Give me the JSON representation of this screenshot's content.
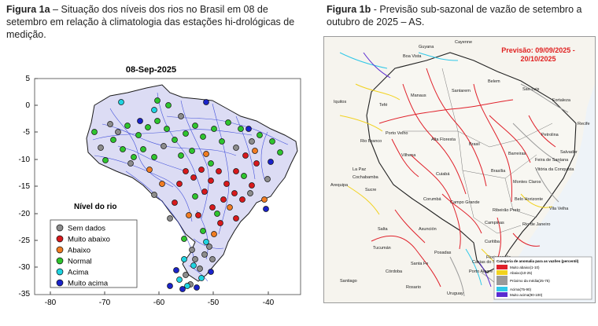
{
  "figure_a": {
    "caption_label": "Figura 1a",
    "caption_text": " – Situação dos níveis dos rios no Brasil em 08 de setembro em relação à climatologia das estações hi-drológicas de medição.",
    "map_title": "08-Sep-2025",
    "x_ticks": [
      "-80",
      "-70",
      "-60",
      "-50",
      "-40"
    ],
    "y_ticks": [
      "5",
      "0",
      "-5",
      "-10",
      "-15",
      "-20",
      "-25",
      "-30",
      "-35"
    ],
    "legend_title": "Nível do rio",
    "legend": [
      {
        "label": "Sem dados",
        "color": "#8c8c8c"
      },
      {
        "label": "Muito abaixo",
        "color": "#d7191c"
      },
      {
        "label": "Abaixo",
        "color": "#f07c22"
      },
      {
        "label": "Normal",
        "color": "#2ec42e"
      },
      {
        "label": "Acima",
        "color": "#1fd3e0"
      },
      {
        "label": "Muito acima",
        "color": "#1a23c9"
      }
    ]
  },
  "figure_b": {
    "caption_label": "Figura 1b",
    "caption_text": " - Previsão sub-sazonal de vazão de setembro a outubro de 2025 – AS.",
    "forecast_label_line1": "Previsão: 09/09/2025 -",
    "forecast_label_line2": "20/10/2025",
    "legend_title": "Categoria de anomalia para as vazões (percentil)",
    "legend": [
      {
        "label": "Muito abaixo(1-10)",
        "color": "#e0202a"
      },
      {
        "label": "Abaixo(10-25)",
        "color": "#f2d21e"
      },
      {
        "label": "Próximo da média(25-75)",
        "color": "#9a9a9a"
      },
      {
        "label": "Acima(75-90)",
        "color": "#30c8e8"
      },
      {
        "label": "Muito acima(90-100)",
        "color": "#5a2bd0"
      }
    ],
    "place_labels": [
      "Cayenne",
      "Guyana",
      "Boa Vista",
      "Belem",
      "Fortaleza",
      "Manaus",
      "Sao Luis",
      "Tefé",
      "Santarem",
      "Recife",
      "Iquitos",
      "Petrolina",
      "Rio Branco",
      "Porto Velho",
      "Alta Floresta",
      "Brasil",
      "Barreiras",
      "Vilhena",
      "Salvador",
      "Feira de Santana",
      "Cuiabá",
      "Brasília",
      "Vitória da Conquista",
      "Montes Claros",
      "Cochabamba",
      "Sucre",
      "Corumbá",
      "Campo Grande",
      "Belo Horizonte",
      "Vila Velha",
      "Rio de Janeiro",
      "Ribeirão Preto",
      "Campinas",
      "Arequipa",
      "La Paz",
      "Salta",
      "Asunción",
      "Curitiba",
      "Posadas",
      "Florianopolis",
      "Porto Alegre",
      "Tucumán",
      "Córdoba",
      "Rosario",
      "Santa Fe",
      "Santiago",
      "Uruguay",
      "Caxias do Sul"
    ]
  }
}
